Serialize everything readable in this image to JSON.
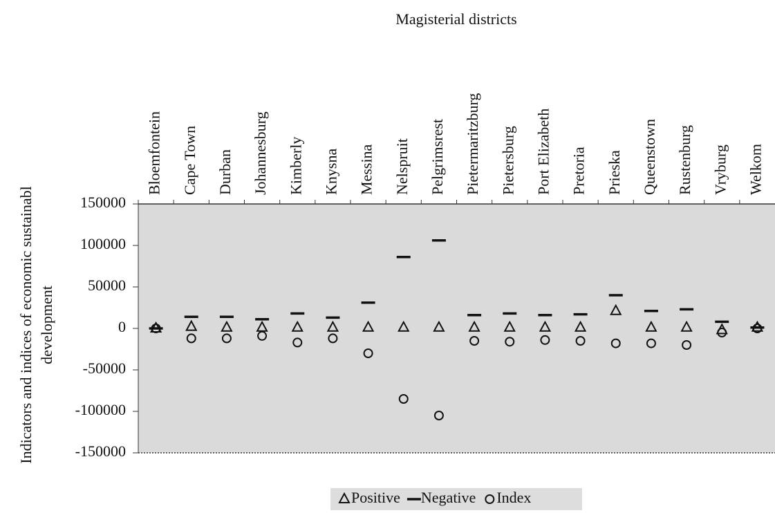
{
  "chart_data": {
    "type": "scatter",
    "title": "Magisterial districts",
    "y_label": [
      "Indicators and indices of economic sustainabl",
      "development"
    ],
    "categories": [
      "Bloemfontein",
      "Cape Town",
      "Durban",
      "Johannesburg",
      "Kimberly",
      "Knysna",
      "Messina",
      "Nelspruit",
      "Pelgrimsrest",
      "Pietermaritzburg",
      "Pietersburg",
      "Port Elizabeth",
      "Pretoria",
      "Prieska",
      "Queenstown",
      "Rustenburg",
      "Vryburg",
      "Welkom"
    ],
    "series": [
      {
        "name": "Positive",
        "color": "#111111",
        "marker": "triangle",
        "values": [
          0,
          2000,
          1000,
          1000,
          1000,
          1000,
          1000,
          1000,
          1000,
          1000,
          1000,
          1000,
          1000,
          21000,
          1000,
          1000,
          -2000,
          1000
        ]
      },
      {
        "name": "Negative",
        "color": "#111111",
        "marker": "dash",
        "values": [
          0,
          14000,
          14000,
          11000,
          18000,
          13000,
          31000,
          86000,
          106000,
          16000,
          18000,
          16000,
          17000,
          40000,
          21000,
          23000,
          8000,
          1000
        ]
      },
      {
        "name": "Index",
        "color": "#111111",
        "marker": "circle",
        "values": [
          0,
          -12000,
          -12000,
          -9000,
          -17000,
          -12000,
          -30000,
          -85000,
          -105000,
          -15000,
          -16000,
          -14000,
          -15000,
          -18000,
          -18000,
          -20000,
          -5000,
          0
        ]
      }
    ],
    "ylim": [
      -150000,
      150000
    ],
    "yticks": [
      -150000,
      -100000,
      -50000,
      0,
      50000,
      100000,
      150000
    ],
    "legend": "bottom"
  }
}
